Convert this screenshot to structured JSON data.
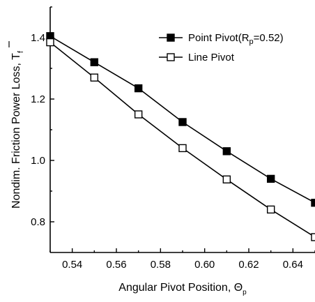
{
  "chart_data": {
    "type": "line",
    "xlabel": "Angular Pivot Position, Θ",
    "xlabel_sub": "p",
    "ylabel": "Nondim. Friction Power Loss, T",
    "ylabel_sub": "f",
    "xlim": [
      0.53,
      0.65
    ],
    "ylim": [
      0.7,
      1.5
    ],
    "xticks": [
      0.54,
      0.56,
      0.58,
      0.6,
      0.62,
      0.64
    ],
    "xtick_labels": [
      "0.54",
      "0.56",
      "0.58",
      "0.60",
      "0.62",
      "0.64"
    ],
    "yticks": [
      0.8,
      1.0,
      1.2,
      1.4
    ],
    "ytick_labels": [
      "0.8",
      "1.0",
      "1.2",
      "1.4"
    ],
    "grid": false,
    "legend_position": "top-right",
    "series": [
      {
        "name": "Point Pivot(R =0.52)",
        "legend_prefix": "Point Pivot(R",
        "legend_sub": "p",
        "legend_suffix": "=0.52)",
        "marker": "filled-square",
        "color": "#000000",
        "x": [
          0.53,
          0.55,
          0.57,
          0.59,
          0.61,
          0.63,
          0.65
        ],
        "y": [
          1.405,
          1.32,
          1.235,
          1.125,
          1.03,
          0.94,
          0.862
        ]
      },
      {
        "name": "Line Pivot",
        "marker": "open-square",
        "color": "#000000",
        "x": [
          0.53,
          0.55,
          0.57,
          0.59,
          0.61,
          0.63,
          0.65
        ],
        "y": [
          1.385,
          1.27,
          1.15,
          1.04,
          0.938,
          0.84,
          0.75
        ]
      }
    ]
  }
}
